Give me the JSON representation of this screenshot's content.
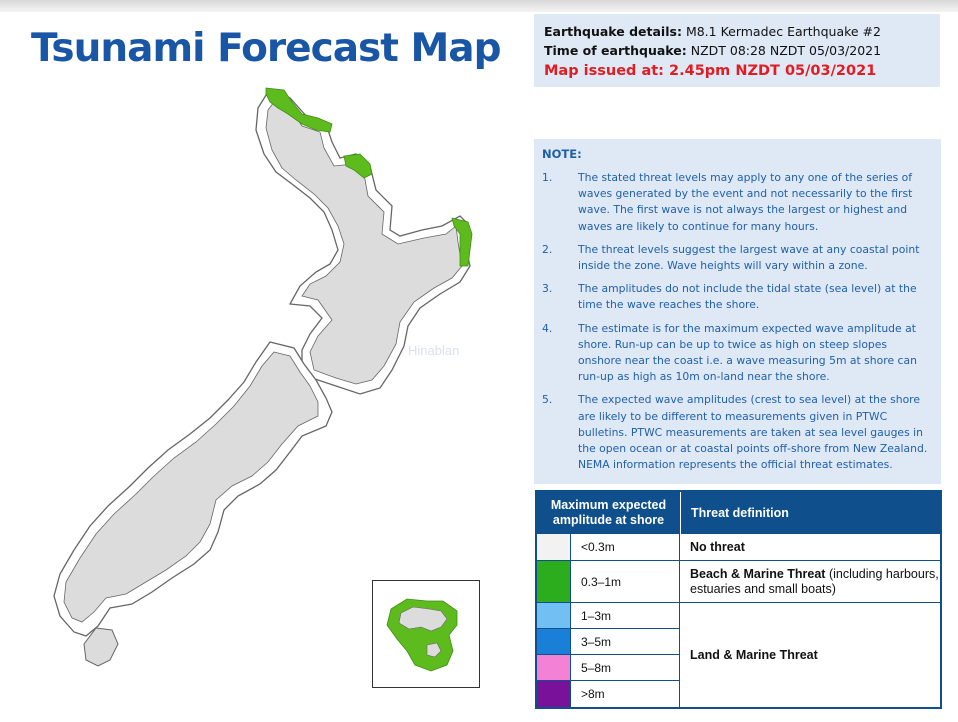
{
  "title": "Tsunami Forecast Map",
  "details": {
    "earthquake_label": "Earthquake details:",
    "earthquake_value": "M8.1 Kermadec Earthquake #2",
    "time_label": "Time of earthquake:",
    "time_value": "NZDT 08:28 NZDT 05/03/2021",
    "issued": "Map issued at: 2.45pm NZDT 05/03/2021"
  },
  "note": {
    "heading": "NOTE:",
    "items": [
      {
        "num": "1.",
        "text": "The stated threat levels may apply to any one of the series of waves generated by the event and not necessarily to the first wave. The first wave is not always the largest or highest and waves are likely to continue for many hours."
      },
      {
        "num": "2.",
        "text": "The threat levels suggest the largest wave at any coastal point inside the zone. Wave heights will vary within a zone."
      },
      {
        "num": "3.",
        "text": "The amplitudes do not include the tidal state (sea level) at the time the wave reaches the shore."
      },
      {
        "num": "4.",
        "text": "The estimate is for the maximum expected wave amplitude at shore. Run-up can be up to twice as high on steep slopes onshore near the coast i.e. a wave measuring 5m at shore can run-up as high as 10m on-land near the shore."
      },
      {
        "num": "5.",
        "text": "The expected wave amplitudes (crest to sea level) at the shore are likely to be different to measurements given in PTWC bulletins. PTWC measurements are taken at sea level gauges in the open ocean or at coastal points off-shore from New Zealand. NEMA information represents the official threat estimates."
      }
    ]
  },
  "legend": {
    "header_amplitude": "Maximum expected amplitude at shore",
    "header_definition": "Threat definition",
    "ranges": [
      {
        "label": "<0.3m",
        "color": "#f2f2f2"
      },
      {
        "label": "0.3–1m",
        "color": "#2cad1d"
      },
      {
        "label": "1–3m",
        "color": "#72bff4"
      },
      {
        "label": "3–5m",
        "color": "#1a7fd6"
      },
      {
        "label": "5–8m",
        "color": "#f381d5"
      },
      {
        "label": ">8m",
        "color": "#7a119a"
      }
    ],
    "definitions": {
      "no_threat": "No threat",
      "beach_bold": "Beach & Marine Threat",
      "beach_rest": " (including harbours, estuaries and small boats)",
      "land": "Land & Marine Threat"
    }
  },
  "watermark": "Hinablan",
  "map_colors": {
    "land": "#dcdcdc",
    "threat_beach": "#5dbb1d",
    "coast": "#666666"
  }
}
